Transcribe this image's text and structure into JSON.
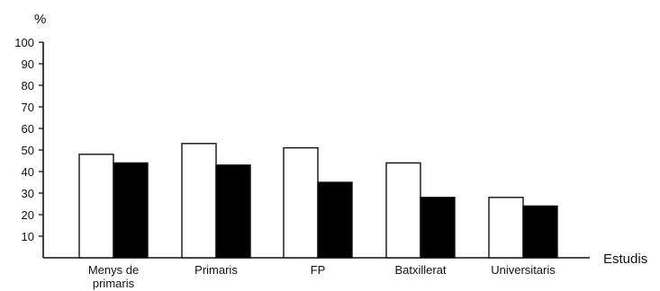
{
  "chart_data": {
    "type": "bar",
    "ylabel": "%",
    "xlabel": "Estudis",
    "categories": [
      "Menys de\nprimaris",
      "Primaris",
      "FP",
      "Batxillerat",
      "Universitaris"
    ],
    "series": [
      {
        "values": [
          48,
          53,
          51,
          44,
          28
        ],
        "color": "#ffffff"
      },
      {
        "values": [
          44,
          43,
          35,
          28,
          24
        ],
        "color": "#000000"
      }
    ],
    "ylim": [
      0,
      100
    ],
    "yticks": [
      10,
      20,
      30,
      40,
      50,
      60,
      70,
      80,
      90,
      100
    ],
    "grid": false,
    "legend": "none"
  }
}
